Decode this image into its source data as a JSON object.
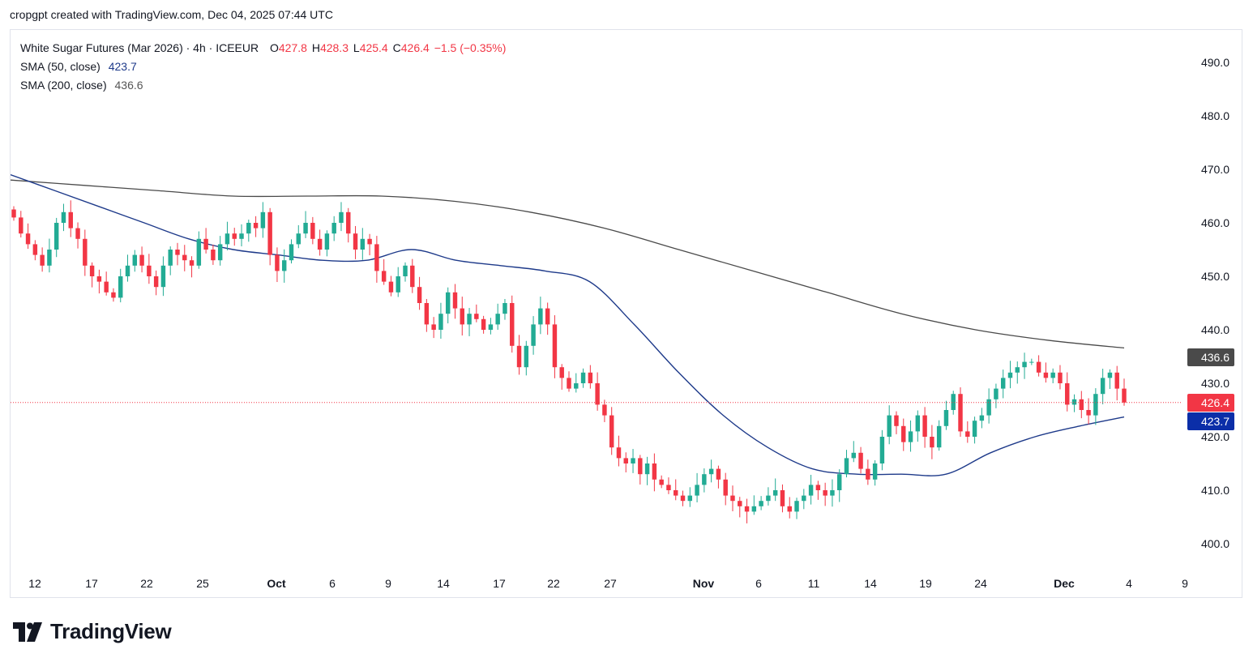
{
  "caption": "cropgpt created with TradingView.com, Dec 04, 2025 07:44 UTC",
  "legend": {
    "symbol": "White Sugar Futures (Mar 2026) · 4h · ICEEUR",
    "open_label": "O",
    "open": "427.8",
    "high_label": "H",
    "high": "428.3",
    "low_label": "L",
    "low": "425.4",
    "close_label": "C",
    "close": "426.4",
    "change": "−1.5 (−0.35%)",
    "sma50_label": "SMA (50, close)",
    "sma50_value": "423.7",
    "sma200_label": "SMA (200, close)",
    "sma200_value": "436.6"
  },
  "brand": {
    "name": "TradingView"
  },
  "colors": {
    "up": "#22ab94",
    "down": "#f23645",
    "sma50": "#1e3a8a",
    "sma200": "#4a4a4a",
    "grid_text": "#131722"
  },
  "chart_data": {
    "type": "candlestick",
    "title": "White Sugar Futures (Mar 2026) · 4h · ICEEUR",
    "ylim": [
      397,
      494
    ],
    "y_ticks": [
      "490.0",
      "480.0",
      "470.0",
      "460.0",
      "450.0",
      "440.0",
      "430.0",
      "420.0",
      "410.0",
      "400.0"
    ],
    "x_labels": [
      "12",
      "17",
      "22",
      "25",
      "Oct",
      "6",
      "9",
      "14",
      "17",
      "22",
      "27",
      "Nov",
      "6",
      "11",
      "14",
      "19",
      "24",
      "Dec",
      "4",
      "9"
    ],
    "last_price": "426.4",
    "price_badges": [
      {
        "label": "436.6",
        "series": "SMA 200"
      },
      {
        "label": "426.4",
        "series": "Last"
      },
      {
        "label": "423.7",
        "series": "SMA 50"
      }
    ],
    "series": [
      {
        "name": "Price",
        "kind": "ohlc",
        "close": [
          461,
          458,
          456,
          454,
          452,
          455,
          460,
          462,
          459,
          457,
          452,
          450,
          449,
          447,
          446,
          450,
          452,
          454,
          452,
          450,
          448,
          452,
          455,
          454,
          453,
          452,
          457,
          455,
          453,
          456,
          458,
          457,
          458,
          460,
          459,
          462,
          454,
          451,
          453,
          456,
          458,
          460,
          457,
          455,
          458,
          460,
          462,
          458,
          455,
          457,
          456,
          451,
          449,
          447,
          450,
          452,
          448,
          445,
          441,
          440,
          443,
          447,
          444,
          441,
          443,
          442,
          440,
          441,
          443,
          445,
          437,
          433,
          437,
          441,
          444,
          441,
          433,
          431,
          429,
          430,
          432,
          430,
          426,
          424,
          418,
          416,
          415,
          416,
          413,
          415,
          412,
          411,
          410,
          409,
          408,
          409,
          411,
          413,
          414,
          412,
          409,
          408,
          407,
          406,
          407,
          408,
          409,
          410,
          407,
          406,
          408,
          409,
          411,
          410,
          409,
          410,
          413,
          416,
          417,
          414,
          412,
          415,
          420,
          424,
          422,
          419,
          421,
          424,
          420,
          418,
          422,
          425,
          428,
          421,
          420,
          423,
          424,
          427,
          429,
          431,
          432,
          433,
          434,
          434,
          432,
          431,
          432,
          430,
          426,
          427,
          425,
          424,
          428,
          431,
          432,
          429,
          426.4
        ]
      },
      {
        "name": "SMA 50",
        "kind": "line",
        "values": [
          469,
          466,
          463,
          460,
          457,
          455,
          454,
          453,
          453,
          455,
          453,
          452,
          451,
          449,
          441,
          432,
          424,
          418,
          414,
          413,
          413,
          413,
          417,
          420,
          422,
          423.7
        ]
      },
      {
        "name": "SMA 200",
        "kind": "line",
        "values": [
          468,
          467,
          466,
          465,
          465,
          465,
          464,
          462,
          459,
          455,
          451,
          447,
          443,
          440,
          438,
          436.6
        ]
      }
    ]
  }
}
